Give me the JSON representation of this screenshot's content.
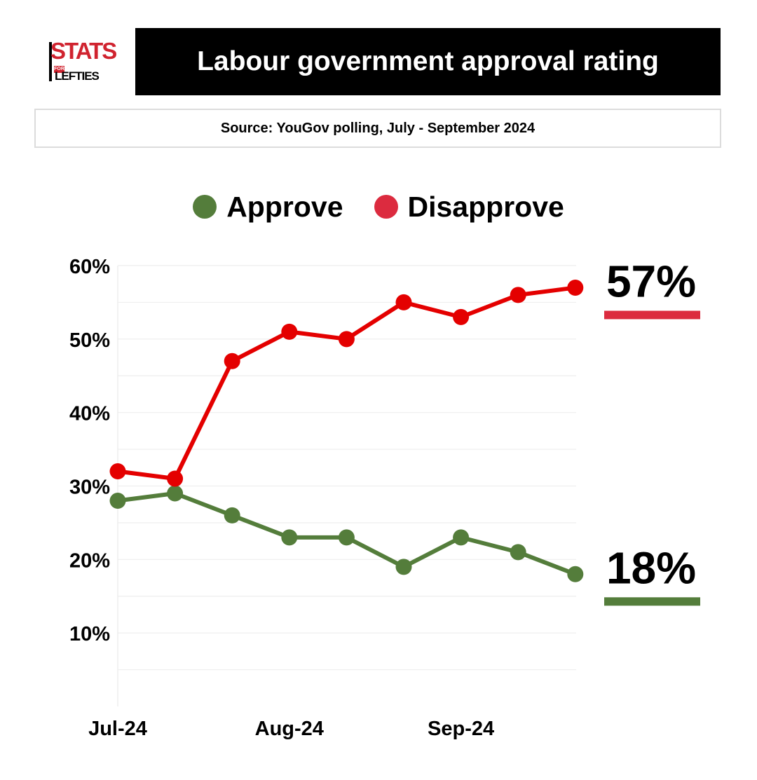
{
  "header": {
    "logo_top": "STATS",
    "logo_for": "FOR",
    "logo_bottom": "LEFTIES",
    "title": "Labour government approval rating",
    "source": "Source: YouGov polling, July - September 2024"
  },
  "colors": {
    "approve": "#547d3b",
    "disapprove": "#e40000",
    "disapprove_legend": "#dc2b3f",
    "grid": "#eeeeee"
  },
  "chart_data": {
    "type": "line",
    "x_tick_labels": [
      "Jul-24",
      "Aug-24",
      "Sep-24"
    ],
    "x_tick_index": [
      0,
      3,
      6
    ],
    "y_tick_labels": [
      "10%",
      "20%",
      "30%",
      "40%",
      "50%",
      "60%"
    ],
    "y_ticks": [
      10,
      20,
      30,
      40,
      50,
      60
    ],
    "ylim": [
      0,
      60
    ],
    "grid": true,
    "legend": "top-center",
    "series": [
      {
        "name": "Approve",
        "color_key": "approve",
        "values": [
          28,
          29,
          26,
          23,
          23,
          19,
          23,
          21,
          18
        ],
        "end_label": "18%"
      },
      {
        "name": "Disapprove",
        "color_key": "disapprove",
        "values": [
          32,
          31,
          47,
          51,
          50,
          55,
          53,
          56,
          57
        ],
        "end_label": "57%"
      }
    ]
  }
}
